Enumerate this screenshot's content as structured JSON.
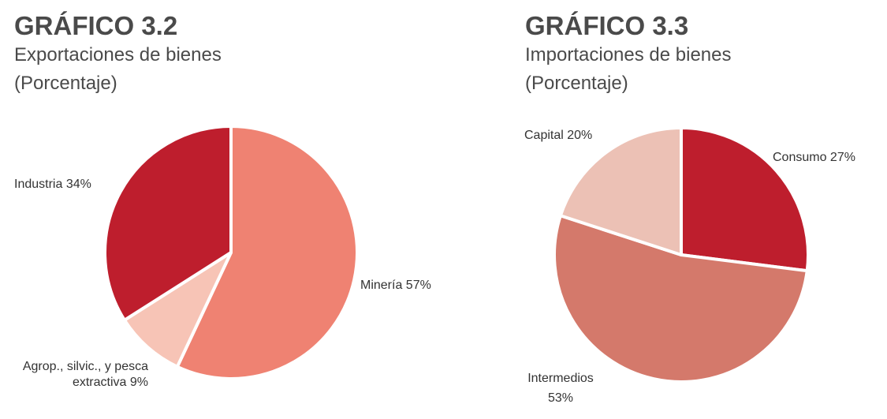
{
  "chart_data": [
    {
      "type": "pie",
      "title": "GRÁFICO 3.2",
      "subtitle": "Exportaciones de bienes",
      "unit": "(Porcentaje)",
      "slices": [
        {
          "label": "Minería",
          "value": 57,
          "value_label": "57%",
          "color": "#EF8272"
        },
        {
          "label": "Agrop., silvic., y pesca extractiva",
          "label_lines": [
            "Agrop., silvic., y pesca",
            "extractiva"
          ],
          "value": 9,
          "value_label": "9%",
          "color": "#F7C4B6"
        },
        {
          "label": "Industria",
          "value": 34,
          "value_label": "34%",
          "color": "#BE1E2D"
        }
      ]
    },
    {
      "type": "pie",
      "title": "GRÁFICO 3.3",
      "subtitle": "Importaciones de bienes",
      "unit": "(Porcentaje)",
      "slices": [
        {
          "label": "Consumo",
          "value": 27,
          "value_label": "27%",
          "color": "#BE1E2D"
        },
        {
          "label": "Intermedios",
          "value": 53,
          "value_label": "53%",
          "color": "#D4796B"
        },
        {
          "label": "Capital",
          "value": 20,
          "value_label": "20%",
          "color": "#ECC1B5"
        }
      ]
    }
  ]
}
